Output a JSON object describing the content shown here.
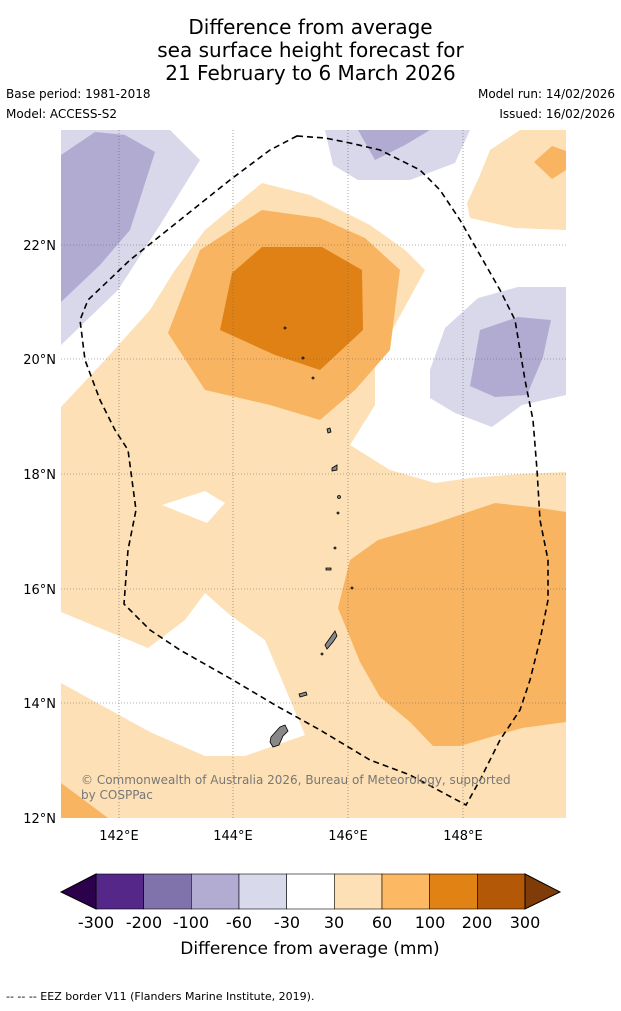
{
  "title": {
    "line1": "Difference from average",
    "line2": "sea surface height forecast for",
    "line3": "21 February to 6 March 2026"
  },
  "meta": {
    "base_period": "Base period: 1981-2018",
    "model": "Model: ACCESS-S2",
    "model_run": "Model run: 14/02/2026",
    "issued": "Issued: 16/02/2026"
  },
  "map": {
    "lat_labels": [
      "22°N",
      "20°N",
      "18°N",
      "16°N",
      "14°N",
      "12°N"
    ],
    "lon_labels": [
      "142°E",
      "144°E",
      "146°E",
      "148°E"
    ],
    "credit_line1": "© Commonwealth of Australia 2026, Bureau of Meteorology, supported",
    "credit_line2": "by COSPPac",
    "colors": {
      "n60_30": "#d8d8ea",
      "n100_60": "#b1abd1",
      "p30_60": "#fde0b5",
      "p60_100": "#f9b461",
      "p100_200": "#e08116",
      "eez": "#000000",
      "land": "#888888"
    }
  },
  "colorbar": {
    "label": "Difference from average (mm)",
    "ticks": [
      "-300",
      "-200",
      "-100",
      "-60",
      "-30",
      "30",
      "60",
      "100",
      "200",
      "300"
    ],
    "low_extend_color": "#2d004b",
    "high_extend_color": "#7f3b08",
    "bins": [
      "#542788",
      "#8073ac",
      "#b2abd2",
      "#d8daeb",
      "#ffffff",
      "#fee0b6",
      "#fdb863",
      "#e08214",
      "#b35806"
    ]
  },
  "footnote": "--  --  -- EEZ border V11 (Flanders Marine Institute, 2019)."
}
